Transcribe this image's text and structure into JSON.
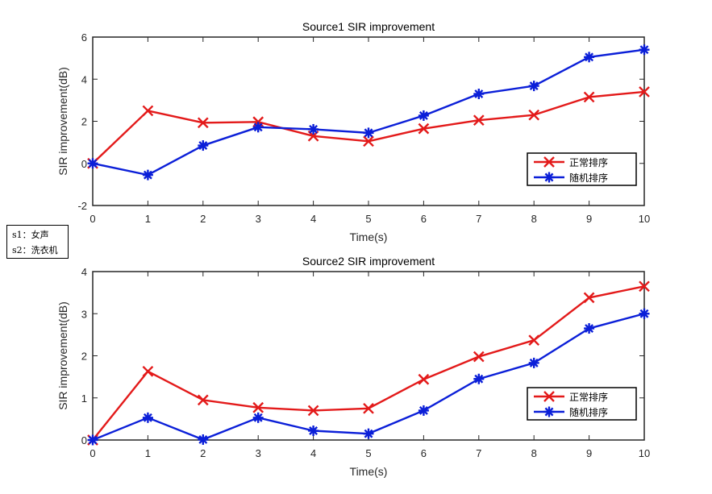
{
  "annotation": {
    "lines": [
      "s1：女声",
      "s2：洗衣机"
    ]
  },
  "chart_data": [
    {
      "type": "line",
      "title": "Source1 SIR improvement",
      "xlabel": "Time(s)",
      "ylabel": "SIR improvement(dB)",
      "x": [
        0,
        1,
        2,
        3,
        4,
        5,
        6,
        7,
        8,
        9,
        10
      ],
      "xlim": [
        0,
        10
      ],
      "ylim": [
        -2,
        6
      ],
      "xticks": [
        0,
        1,
        2,
        3,
        4,
        5,
        6,
        7,
        8,
        9,
        10
      ],
      "yticks": [
        -2,
        0,
        2,
        4,
        6
      ],
      "grid": false,
      "legend_position": "bottom-right",
      "series": [
        {
          "name": "正常排序",
          "color": "#e31a1a",
          "marker": "x",
          "values": [
            0,
            2.5,
            1.93,
            1.97,
            1.3,
            1.05,
            1.65,
            2.05,
            2.3,
            3.15,
            3.4
          ]
        },
        {
          "name": "随机排序",
          "color": "#0b1fd8",
          "marker": "asterisk",
          "values": [
            0,
            -0.55,
            0.85,
            1.72,
            1.62,
            1.45,
            2.27,
            3.3,
            3.68,
            5.05,
            5.4
          ]
        }
      ]
    },
    {
      "type": "line",
      "title": "Source2 SIR improvement",
      "xlabel": "Time(s)",
      "ylabel": "SIR improvement(dB)",
      "x": [
        0,
        1,
        2,
        3,
        4,
        5,
        6,
        7,
        8,
        9,
        10
      ],
      "xlim": [
        0,
        10
      ],
      "ylim": [
        0,
        4
      ],
      "xticks": [
        0,
        1,
        2,
        3,
        4,
        5,
        6,
        7,
        8,
        9,
        10
      ],
      "yticks": [
        0,
        1,
        2,
        3,
        4
      ],
      "grid": false,
      "legend_position": "bottom-right",
      "series": [
        {
          "name": "正常排序",
          "color": "#e31a1a",
          "marker": "x",
          "values": [
            0,
            1.63,
            0.95,
            0.77,
            0.7,
            0.75,
            1.44,
            1.98,
            2.37,
            3.38,
            3.65
          ]
        },
        {
          "name": "随机排序",
          "color": "#0b1fd8",
          "marker": "asterisk",
          "values": [
            0,
            0.53,
            0.01,
            0.53,
            0.22,
            0.15,
            0.7,
            1.45,
            1.83,
            2.65,
            3.0
          ]
        }
      ]
    }
  ]
}
